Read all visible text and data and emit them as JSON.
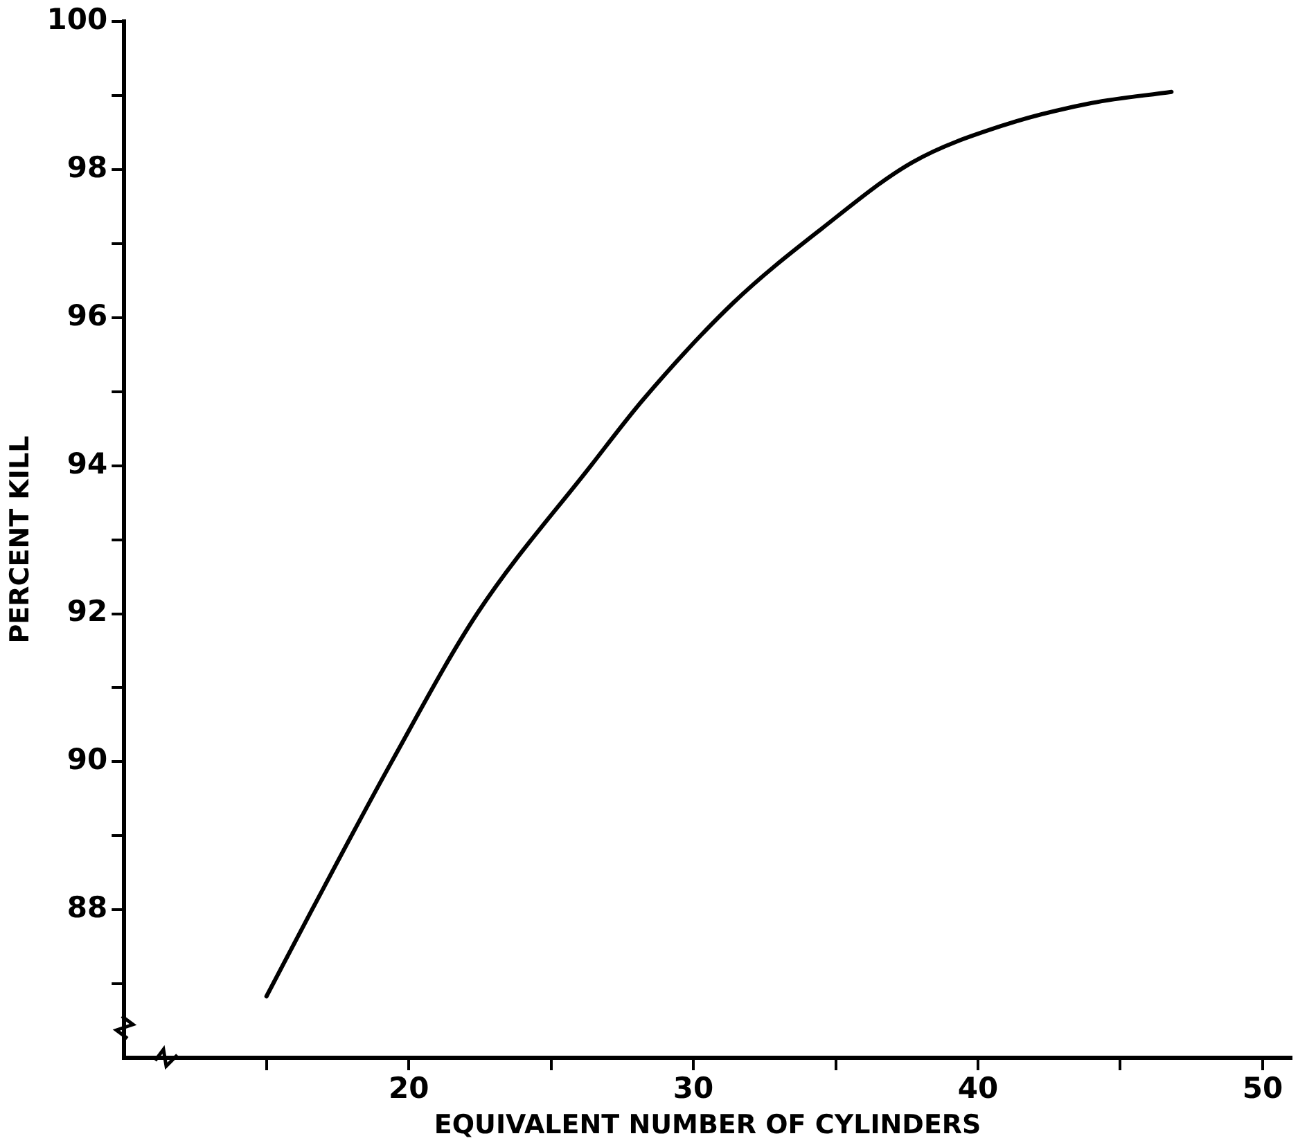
{
  "chart_data": {
    "type": "line",
    "xlabel": "EQUIVALENT NUMBER OF CYLINDERS",
    "ylabel": "PERCENT KILL",
    "x": [
      15,
      16.6,
      19.4,
      22.4,
      26.4,
      28.25,
      31.4,
      34.5,
      37.7,
      40.9,
      44,
      46.8
    ],
    "series": [
      {
        "color": "#000000",
        "values": [
          86.83,
          88,
          90,
          92,
          94,
          94.9,
          96.2,
          97.2,
          98.1,
          98.6,
          98.9,
          99.05
        ]
      }
    ],
    "xlim": [
      10,
      51
    ],
    "ylim": [
      86,
      100
    ],
    "xticks": [
      {
        "value": 15,
        "label": null
      },
      20,
      {
        "value": 25,
        "label": null
      },
      30,
      {
        "value": 35,
        "label": null
      },
      40,
      {
        "value": 45,
        "label": null
      },
      50
    ],
    "yticks": [
      {
        "value": 87,
        "label": null
      },
      88,
      {
        "value": 89,
        "label": null
      },
      90,
      {
        "value": 91,
        "label": null
      },
      92,
      {
        "value": 93,
        "label": null
      },
      94,
      {
        "value": 95,
        "label": null
      },
      96,
      {
        "value": 97,
        "label": null
      },
      98,
      {
        "value": 99,
        "label": null
      },
      100
    ],
    "marker": "none",
    "line_style": "solid"
  }
}
